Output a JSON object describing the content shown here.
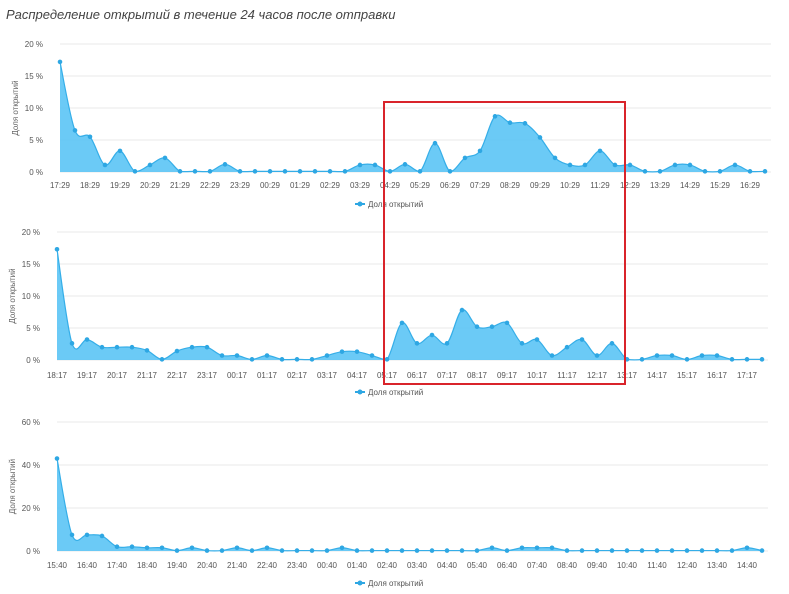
{
  "title": "Распределение открытий в течение 24 часов после отправки",
  "accent_color": "#5bc4f5",
  "highlight_color": "#d9242b",
  "chart_data": [
    {
      "type": "area",
      "ylabel": "Доля открытий",
      "ylim": [
        0,
        20
      ],
      "yticks": [
        "0 %",
        "5 %",
        "10 %",
        "15 %",
        "20 %"
      ],
      "ytick_values": [
        0,
        5,
        10,
        15,
        20
      ],
      "x_labels": [
        "17:29",
        "18:29",
        "19:29",
        "20:29",
        "21:29",
        "22:29",
        "23:29",
        "00:29",
        "01:29",
        "02:29",
        "03:29",
        "04:29",
        "05:29",
        "06:29",
        "07:29",
        "08:29",
        "09:29",
        "10:29",
        "11:29",
        "12:29",
        "13:29",
        "14:29",
        "15:29",
        "16:29"
      ],
      "series": [
        {
          "name": "Доля открытий",
          "values": [
            17.2,
            6.5,
            5.5,
            1.1,
            3.3,
            0.1,
            1.1,
            2.2,
            0.1,
            0.1,
            0.1,
            1.2,
            0.1,
            0.1,
            0.1,
            0.1,
            0.1,
            0.1,
            0.1,
            0.1,
            1.1,
            1.1,
            0.1,
            1.2,
            0.1,
            4.5,
            0.1,
            2.2,
            3.3,
            8.7,
            7.7,
            7.6,
            5.4,
            2.2,
            1.1,
            1.1,
            3.3,
            1.1,
            1.1,
            0.1,
            0.1,
            1.1,
            1.1,
            0.1,
            0.1,
            1.1,
            0.1,
            0.1
          ]
        }
      ],
      "legend": [
        "Доля открытий"
      ],
      "legend_position": "bottom-center"
    },
    {
      "type": "area",
      "ylabel": "Доля открытий",
      "ylim": [
        0,
        20
      ],
      "yticks": [
        "0 %",
        "5 %",
        "10 %",
        "15 %",
        "20 %"
      ],
      "ytick_values": [
        0,
        5,
        10,
        15,
        20
      ],
      "x_labels": [
        "18:17",
        "19:17",
        "20:17",
        "21:17",
        "22:17",
        "23:17",
        "00:17",
        "01:17",
        "02:17",
        "03:17",
        "04:17",
        "05:17",
        "06:17",
        "07:17",
        "08:17",
        "09:17",
        "10:17",
        "11:17",
        "12:17",
        "13:17",
        "14:17",
        "15:17",
        "16:17",
        "17:17"
      ],
      "series": [
        {
          "name": "Доля открытий",
          "values": [
            17.3,
            2.6,
            3.2,
            2.0,
            2.0,
            2.0,
            1.5,
            0.1,
            1.4,
            2.0,
            2.0,
            0.7,
            0.7,
            0.1,
            0.7,
            0.1,
            0.1,
            0.1,
            0.7,
            1.3,
            1.3,
            0.7,
            0.1,
            5.8,
            2.6,
            3.9,
            2.6,
            7.8,
            5.2,
            5.2,
            5.8,
            2.6,
            3.2,
            0.7,
            2.0,
            3.2,
            0.7,
            2.6,
            0.1,
            0.1,
            0.7,
            0.7,
            0.1,
            0.7,
            0.7,
            0.1,
            0.1,
            0.1
          ]
        }
      ],
      "legend": [
        "Доля открытий"
      ],
      "legend_position": "bottom-center"
    },
    {
      "type": "area",
      "ylabel": "Доля открытий",
      "ylim": [
        0,
        60
      ],
      "yticks": [
        "0 %",
        "20 %",
        "40 %",
        "60 %"
      ],
      "ytick_values": [
        0,
        20,
        40,
        60
      ],
      "x_labels": [
        "15:40",
        "16:40",
        "17:40",
        "18:40",
        "19:40",
        "20:40",
        "21:40",
        "22:40",
        "23:40",
        "00:40",
        "01:40",
        "02:40",
        "03:40",
        "04:40",
        "05:40",
        "06:40",
        "07:40",
        "08:40",
        "09:40",
        "10:40",
        "11:40",
        "12:40",
        "13:40",
        "14:40"
      ],
      "series": [
        {
          "name": "Доля открытий",
          "values": [
            43,
            7.5,
            7.5,
            7,
            2,
            2,
            1.5,
            1.5,
            0.2,
            1.5,
            0.2,
            0.2,
            1.5,
            0.2,
            1.5,
            0.2,
            0.2,
            0.2,
            0.2,
            1.5,
            0.2,
            0.2,
            0.2,
            0.2,
            0.2,
            0.2,
            0.2,
            0.2,
            0.2,
            1.5,
            0.2,
            1.5,
            1.5,
            1.5,
            0.2,
            0.2,
            0.2,
            0.2,
            0.2,
            0.2,
            0.2,
            0.2,
            0.2,
            0.2,
            0.2,
            0.2,
            1.5,
            0.2
          ]
        }
      ],
      "legend": [
        "Доля открытий"
      ],
      "legend_position": "bottom-center"
    }
  ]
}
